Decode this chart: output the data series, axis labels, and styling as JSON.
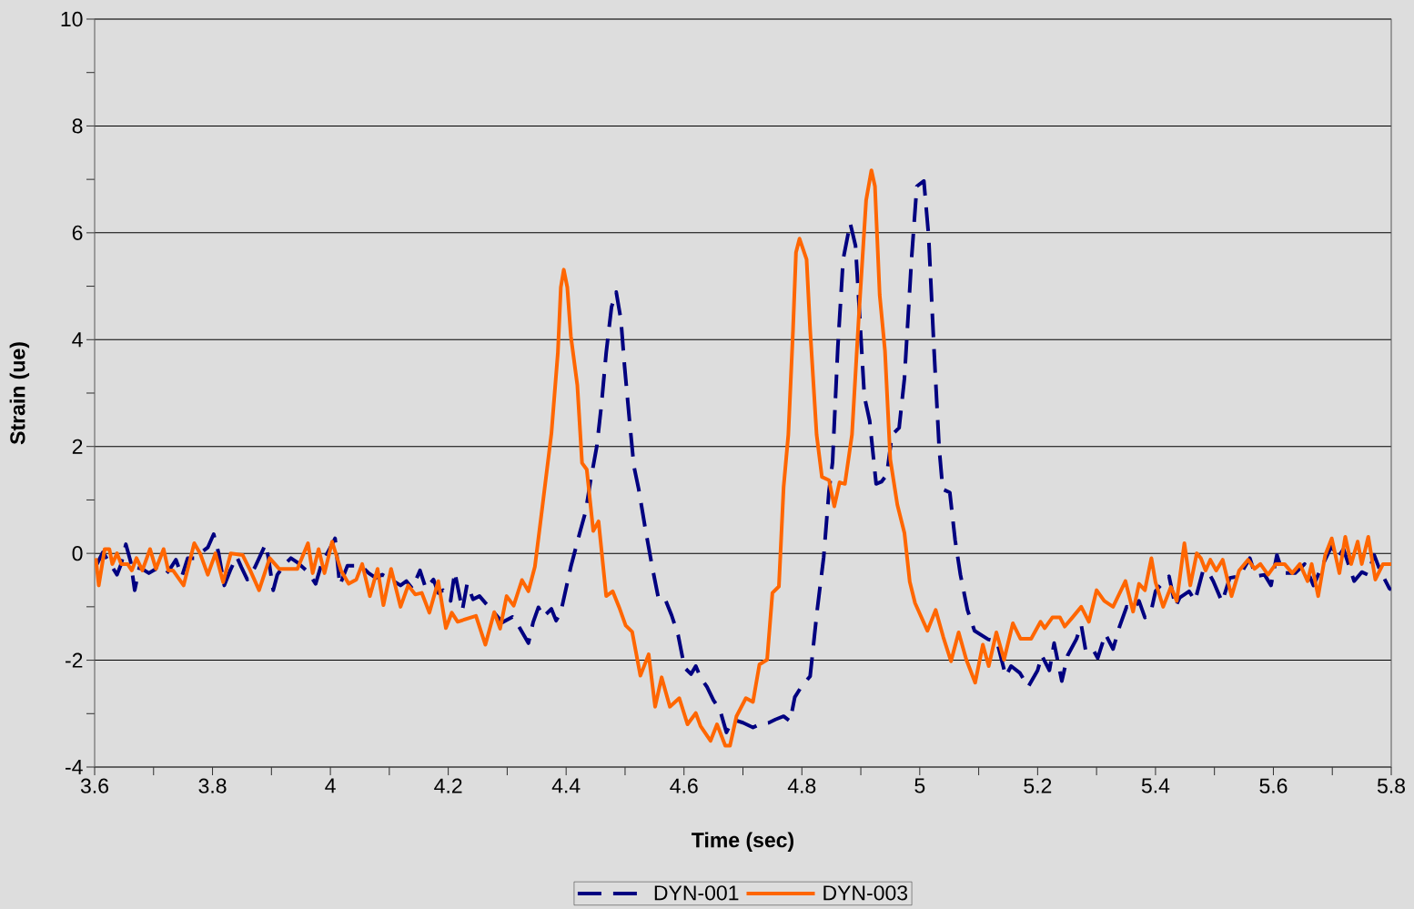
{
  "chart_data": {
    "type": "line",
    "xlabel": "Time (sec)",
    "ylabel": "Strain (ue)",
    "xlim": [
      3.6,
      5.8
    ],
    "xticks": [
      3.6,
      3.8,
      4,
      4.2,
      4.4,
      4.6,
      4.8,
      5,
      5.2,
      5.4,
      5.6,
      5.8
    ],
    "ylim": [
      -4,
      10
    ],
    "yticks": [
      -4,
      -2,
      0,
      2,
      4,
      6,
      8,
      10
    ],
    "grid": "y",
    "legend": "bottom",
    "series": [
      {
        "name": "DYN-001",
        "color": "#000080",
        "line_style": "dashed",
        "x": [
          3.602,
          3.604,
          3.614,
          3.638,
          3.645,
          3.653,
          3.661,
          3.668,
          3.676,
          3.692,
          3.704,
          3.72,
          3.728,
          3.738,
          3.748,
          3.758,
          3.769,
          3.779,
          3.792,
          3.802,
          3.81,
          3.82,
          3.83,
          3.841,
          3.849,
          3.859,
          3.872,
          3.89,
          3.895,
          3.903,
          3.91,
          3.923,
          3.933,
          3.944,
          3.962,
          3.975,
          3.985,
          4.0,
          4.008,
          4.016,
          4.029,
          4.041,
          4.052,
          4.065,
          4.077,
          4.088,
          4.103,
          4.119,
          4.129,
          4.139,
          4.152,
          4.162,
          4.175,
          4.183,
          4.191,
          4.204,
          4.211,
          4.224,
          4.232,
          4.242,
          4.253,
          4.267,
          4.292,
          4.309,
          4.322,
          4.336,
          4.344,
          4.353,
          4.361,
          4.375,
          4.383,
          4.391,
          4.408,
          4.424,
          4.433,
          4.441,
          4.452,
          4.46,
          4.468,
          4.477,
          4.485,
          4.493,
          4.499,
          4.507,
          4.515,
          4.523,
          4.535,
          4.546,
          4.557,
          4.568,
          4.579,
          4.59,
          4.601,
          4.612,
          4.62,
          4.628,
          4.639,
          4.65,
          4.661,
          4.672,
          4.683,
          4.7,
          4.717,
          4.728,
          4.744,
          4.755,
          4.769,
          4.78,
          4.788,
          4.799,
          4.814,
          4.826,
          4.837,
          4.846,
          4.852,
          4.861,
          4.87,
          4.882,
          4.891,
          4.897,
          4.906,
          4.915,
          4.926,
          4.935,
          4.944,
          4.953,
          4.965,
          4.974,
          4.986,
          4.995,
          5.007,
          5.015,
          5.024,
          5.033,
          5.039,
          5.051,
          5.06,
          5.069,
          5.081,
          5.093,
          5.116,
          5.131,
          5.146,
          5.155,
          5.17,
          5.184,
          5.2,
          5.207,
          5.22,
          5.228,
          5.241,
          5.251,
          5.266,
          5.274,
          5.282,
          5.295,
          5.302,
          5.315,
          5.328,
          5.339,
          5.351,
          5.362,
          5.372,
          5.382,
          5.393,
          5.4,
          5.413,
          5.423,
          5.434,
          5.441,
          5.457,
          5.467,
          5.48,
          5.488,
          5.498,
          5.513,
          5.526,
          5.542,
          5.56,
          5.57,
          5.585,
          5.596,
          5.606,
          5.616,
          5.637,
          5.653,
          5.668,
          5.683,
          5.699,
          5.709,
          5.719,
          5.737,
          5.75,
          5.76,
          5.771,
          5.781,
          5.797,
          5.8
        ],
        "values": [
          -0.15,
          -0.2,
          0.02,
          -0.4,
          -0.2,
          0.17,
          -0.15,
          -0.69,
          -0.26,
          -0.37,
          -0.29,
          -0.4,
          -0.29,
          -0.12,
          -0.43,
          -0.09,
          -0.09,
          0.0,
          0.11,
          0.36,
          0.02,
          -0.6,
          -0.32,
          -0.06,
          -0.26,
          -0.49,
          -0.26,
          0.17,
          -0.09,
          -0.69,
          -0.4,
          -0.2,
          -0.09,
          -0.17,
          -0.35,
          -0.57,
          -0.2,
          0.11,
          0.28,
          -0.6,
          -0.23,
          -0.23,
          -0.23,
          -0.37,
          -0.46,
          -0.4,
          -0.49,
          -0.6,
          -0.52,
          -0.66,
          -0.32,
          -0.66,
          -0.49,
          -0.74,
          -0.69,
          -0.89,
          -0.35,
          -1.06,
          -0.57,
          -0.86,
          -0.8,
          -0.98,
          -1.29,
          -1.19,
          -1.41,
          -1.68,
          -1.29,
          -1.01,
          -1.19,
          -1.04,
          -1.26,
          -1.1,
          -0.25,
          0.42,
          0.78,
          1.33,
          2.0,
          2.79,
          3.76,
          4.61,
          4.89,
          4.37,
          3.52,
          2.55,
          1.63,
          1.21,
          0.42,
          -0.25,
          -0.86,
          -0.86,
          -1.16,
          -1.53,
          -2.14,
          -2.26,
          -2.11,
          -2.32,
          -2.5,
          -2.75,
          -2.93,
          -3.35,
          -3.11,
          -3.17,
          -3.26,
          -3.2,
          -3.17,
          -3.11,
          -3.05,
          -3.14,
          -2.69,
          -2.5,
          -2.3,
          -1.06,
          -0.07,
          1.17,
          1.7,
          3.86,
          5.5,
          6.18,
          5.76,
          4.64,
          2.94,
          2.48,
          1.3,
          1.34,
          1.47,
          2.22,
          2.35,
          3.27,
          5.5,
          6.87,
          6.97,
          5.95,
          3.86,
          1.96,
          1.2,
          1.14,
          0.25,
          -0.4,
          -1.06,
          -1.45,
          -1.61,
          -1.65,
          -2.3,
          -2.11,
          -2.24,
          -2.5,
          -2.19,
          -1.91,
          -2.19,
          -1.68,
          -2.39,
          -1.91,
          -1.6,
          -1.34,
          -1.85,
          -1.82,
          -1.96,
          -1.51,
          -1.79,
          -1.37,
          -1.0,
          -1.06,
          -0.89,
          -1.2,
          -1.06,
          -0.71,
          -0.54,
          -0.43,
          -1.0,
          -0.83,
          -0.71,
          -0.89,
          -0.35,
          -0.32,
          -0.52,
          -0.91,
          -0.46,
          -0.43,
          -0.09,
          -0.43,
          -0.4,
          -0.6,
          -0.03,
          -0.37,
          -0.37,
          -0.2,
          -0.6,
          -0.23,
          0.14,
          -0.09,
          0.08,
          -0.52,
          -0.35,
          -0.4,
          -0.03,
          -0.32,
          -0.66,
          -0.68
        ]
      },
      {
        "name": "DYN-003",
        "color": "#ff6600",
        "line_style": "solid",
        "x": [
          3.602,
          3.607,
          3.617,
          3.625,
          3.63,
          3.638,
          3.645,
          3.656,
          3.663,
          3.671,
          3.681,
          3.694,
          3.704,
          3.717,
          3.725,
          3.733,
          3.751,
          3.769,
          3.779,
          3.792,
          3.805,
          3.818,
          3.831,
          3.851,
          3.864,
          3.879,
          3.897,
          3.913,
          3.944,
          3.962,
          3.97,
          3.98,
          3.99,
          4.003,
          4.018,
          4.031,
          4.044,
          4.054,
          4.067,
          4.08,
          4.09,
          4.103,
          4.119,
          4.132,
          4.144,
          4.155,
          4.168,
          4.183,
          4.196,
          4.206,
          4.216,
          4.247,
          4.263,
          4.278,
          4.288,
          4.299,
          4.311,
          4.325,
          4.336,
          4.347,
          4.358,
          4.375,
          4.386,
          4.391,
          4.396,
          4.402,
          4.408,
          4.419,
          4.427,
          4.435,
          4.446,
          4.455,
          4.468,
          4.479,
          4.49,
          4.501,
          4.512,
          4.526,
          4.54,
          4.551,
          4.562,
          4.576,
          4.592,
          4.606,
          4.62,
          4.628,
          4.645,
          4.656,
          4.67,
          4.678,
          4.689,
          4.705,
          4.717,
          4.728,
          4.741,
          4.75,
          4.761,
          4.769,
          4.777,
          4.785,
          4.79,
          4.796,
          4.808,
          4.814,
          4.825,
          4.834,
          4.846,
          4.855,
          4.864,
          4.873,
          4.885,
          4.897,
          4.909,
          4.918,
          4.924,
          4.932,
          4.941,
          4.95,
          4.962,
          4.974,
          4.983,
          4.992,
          5.013,
          5.027,
          5.04,
          5.053,
          5.066,
          5.079,
          5.094,
          5.107,
          5.117,
          5.13,
          5.143,
          5.158,
          5.171,
          5.189,
          5.205,
          5.212,
          5.225,
          5.238,
          5.246,
          5.259,
          5.274,
          5.287,
          5.3,
          5.313,
          5.328,
          5.349,
          5.362,
          5.372,
          5.382,
          5.393,
          5.4,
          5.413,
          5.426,
          5.436,
          5.449,
          5.459,
          5.47,
          5.477,
          5.485,
          5.493,
          5.503,
          5.514,
          5.529,
          5.542,
          5.557,
          5.568,
          5.578,
          5.591,
          5.604,
          5.619,
          5.632,
          5.645,
          5.658,
          5.665,
          5.676,
          5.688,
          5.699,
          5.712,
          5.722,
          5.732,
          5.743,
          5.75,
          5.761,
          5.773,
          5.786,
          5.8
        ],
        "values": [
          -0.09,
          -0.6,
          0.08,
          0.08,
          -0.2,
          0.0,
          -0.2,
          -0.2,
          -0.32,
          -0.09,
          -0.32,
          0.08,
          -0.29,
          0.08,
          -0.32,
          -0.32,
          -0.6,
          0.19,
          0.0,
          -0.4,
          0.0,
          -0.54,
          0.0,
          -0.03,
          -0.32,
          -0.69,
          -0.09,
          -0.29,
          -0.29,
          0.19,
          -0.37,
          0.08,
          -0.37,
          0.22,
          -0.32,
          -0.57,
          -0.49,
          -0.2,
          -0.8,
          -0.29,
          -0.97,
          -0.29,
          -1.0,
          -0.6,
          -0.77,
          -0.74,
          -1.11,
          -0.52,
          -1.4,
          -1.11,
          -1.28,
          -1.17,
          -1.71,
          -1.1,
          -1.41,
          -0.8,
          -0.98,
          -0.5,
          -0.71,
          -0.25,
          0.72,
          2.24,
          3.76,
          4.98,
          5.31,
          4.98,
          4.07,
          3.15,
          1.69,
          1.57,
          0.42,
          0.6,
          -0.8,
          -0.71,
          -1.01,
          -1.35,
          -1.47,
          -2.29,
          -1.89,
          -2.87,
          -2.32,
          -2.87,
          -2.71,
          -3.2,
          -2.99,
          -3.23,
          -3.51,
          -3.2,
          -3.6,
          -3.6,
          -3.05,
          -2.71,
          -2.78,
          -2.08,
          -1.99,
          -0.74,
          -0.62,
          1.24,
          2.22,
          4.19,
          5.63,
          5.89,
          5.5,
          4.19,
          2.22,
          1.43,
          1.37,
          0.88,
          1.33,
          1.3,
          2.22,
          4.51,
          6.61,
          7.17,
          6.87,
          4.84,
          3.79,
          1.76,
          0.91,
          0.38,
          -0.53,
          -0.93,
          -1.45,
          -1.06,
          -1.57,
          -2.02,
          -1.48,
          -1.99,
          -2.42,
          -1.71,
          -2.11,
          -1.48,
          -1.99,
          -1.31,
          -1.6,
          -1.6,
          -1.28,
          -1.4,
          -1.2,
          -1.2,
          -1.37,
          -1.2,
          -1.0,
          -1.28,
          -0.69,
          -0.89,
          -1.0,
          -0.52,
          -1.09,
          -0.57,
          -0.69,
          -0.09,
          -0.54,
          -1.0,
          -0.63,
          -0.89,
          0.19,
          -0.6,
          0.0,
          -0.09,
          -0.32,
          -0.12,
          -0.32,
          -0.12,
          -0.8,
          -0.32,
          -0.12,
          -0.29,
          -0.2,
          -0.4,
          -0.2,
          -0.2,
          -0.37,
          -0.2,
          -0.52,
          -0.2,
          -0.8,
          -0.03,
          0.28,
          -0.37,
          0.31,
          -0.2,
          0.22,
          -0.2,
          0.31,
          -0.49,
          -0.2,
          -0.2
        ]
      }
    ]
  }
}
